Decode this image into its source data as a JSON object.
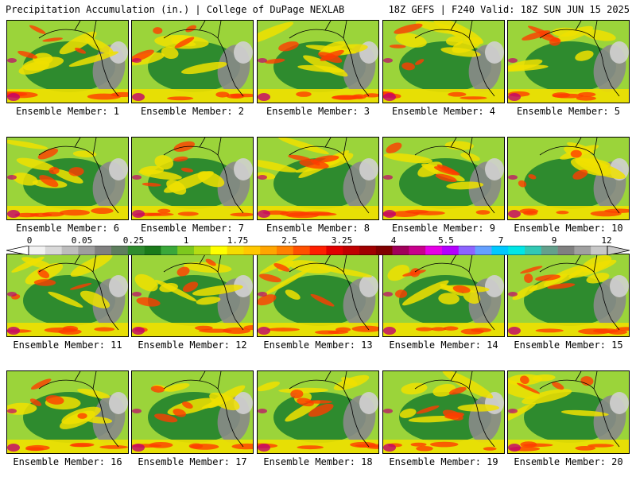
{
  "header": {
    "left": "Precipitation Accumulation (in.) | College of DuPage NEXLAB",
    "right": "18Z GEFS | F240 Valid: 18Z SUN JUN 15 2025"
  },
  "panels": [
    {
      "label": "Ensemble Member: 1"
    },
    {
      "label": "Ensemble Member: 2"
    },
    {
      "label": "Ensemble Member: 3"
    },
    {
      "label": "Ensemble Member: 4"
    },
    {
      "label": "Ensemble Member: 5"
    },
    {
      "label": "Ensemble Member: 6"
    },
    {
      "label": "Ensemble Member: 7"
    },
    {
      "label": "Ensemble Member: 8"
    },
    {
      "label": "Ensemble Member: 9"
    },
    {
      "label": "Ensemble Member: 10"
    },
    {
      "label": "Ensemble Member: 11"
    },
    {
      "label": "Ensemble Member: 12"
    },
    {
      "label": "Ensemble Member: 13"
    },
    {
      "label": "Ensemble Member: 14"
    },
    {
      "label": "Ensemble Member: 15"
    },
    {
      "label": "Ensemble Member: 16"
    },
    {
      "label": "Ensemble Member: 17"
    },
    {
      "label": "Ensemble Member: 18"
    },
    {
      "label": "Ensemble Member: 19"
    },
    {
      "label": "Ensemble Member: 20"
    }
  ],
  "colorbar": {
    "ticks": [
      "0",
      "0.05",
      "0.25",
      "1",
      "1.75",
      "2.5",
      "3.25",
      "4",
      "5.5",
      "7",
      "9",
      "12"
    ],
    "colors": [
      "#f2f2f2",
      "#d9d9d9",
      "#bdbdbd",
      "#9e9e9e",
      "#808080",
      "#5e7e5e",
      "#2e8b2e",
      "#1a7a1a",
      "#3aa83a",
      "#7dc81e",
      "#b5dc14",
      "#ffff00",
      "#f5dc00",
      "#ffc800",
      "#ffa500",
      "#ff8000",
      "#ff5000",
      "#ff1e00",
      "#e00000",
      "#c00000",
      "#a00000",
      "#800000",
      "#a0005a",
      "#c8008c",
      "#e600e6",
      "#b400ff",
      "#8c64ff",
      "#64a0ff",
      "#00c8ff",
      "#00e6e6",
      "#32c8b4",
      "#64a08c",
      "#808080",
      "#a0a0a0",
      "#c8c8c8"
    ],
    "palette": {
      "ocean": "#f0e000",
      "land_dry": "#8a8a8a",
      "land_low": "#2e8b2e",
      "heavy": "#ff3c00",
      "extreme": "#c0006e"
    }
  }
}
